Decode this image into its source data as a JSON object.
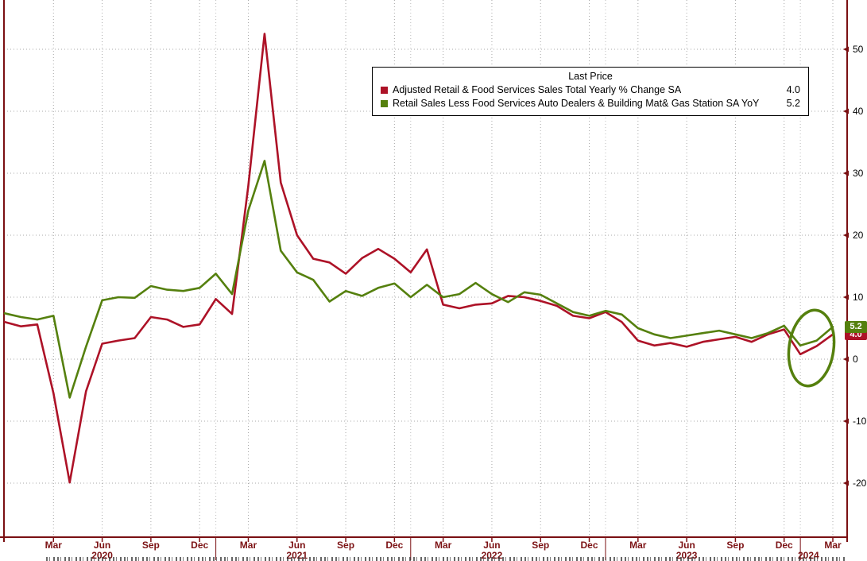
{
  "chart_data": {
    "type": "line",
    "legend": {
      "title": "Last Price",
      "position": "top-center"
    },
    "x": [
      "Dec 2019",
      "Jan 2020",
      "Feb 2020",
      "Mar 2020",
      "Apr 2020",
      "May 2020",
      "Jun 2020",
      "Jul 2020",
      "Aug 2020",
      "Sep 2020",
      "Oct 2020",
      "Nov 2020",
      "Dec 2020",
      "Jan 2021",
      "Feb 2021",
      "Mar 2021",
      "Apr 2021",
      "May 2021",
      "Jun 2021",
      "Jul 2021",
      "Aug 2021",
      "Sep 2021",
      "Oct 2021",
      "Nov 2021",
      "Dec 2021",
      "Jan 2022",
      "Feb 2022",
      "Mar 2022",
      "Apr 2022",
      "May 2022",
      "Jun 2022",
      "Jul 2022",
      "Aug 2022",
      "Sep 2022",
      "Oct 2022",
      "Nov 2022",
      "Dec 2022",
      "Jan 2023",
      "Feb 2023",
      "Mar 2023",
      "Apr 2023",
      "May 2023",
      "Jun 2023",
      "Jul 2023",
      "Aug 2023",
      "Sep 2023",
      "Oct 2023",
      "Nov 2023",
      "Dec 2023",
      "Jan 2024",
      "Feb 2024",
      "Mar 2024"
    ],
    "series": [
      {
        "id": "adjusted-retail-food-services",
        "name": "Adjusted Retail & Food Services Sales Total Yearly % Change SA",
        "color": "#ad1227",
        "last_price": "4.0",
        "values": [
          6.0,
          5.3,
          5.6,
          -5.5,
          -19.9,
          -5.2,
          2.5,
          3.0,
          3.4,
          6.8,
          6.4,
          5.2,
          5.6,
          9.7,
          7.3,
          28.0,
          52.5,
          28.5,
          20.0,
          16.2,
          15.6,
          13.8,
          16.3,
          17.8,
          16.2,
          14.0,
          17.7,
          8.8,
          8.2,
          8.8,
          9.0,
          10.2,
          10.0,
          9.4,
          8.6,
          7.0,
          6.6,
          7.6,
          6.0,
          3.0,
          2.2,
          2.6,
          2.0,
          2.8,
          3.2,
          3.6,
          2.8,
          4.0,
          4.8,
          0.8,
          2.1,
          4.0
        ]
      },
      {
        "id": "retail-control-group",
        "name": "Retail Sales Less Food Services Auto Dealers & Building Mat& Gas Station SA YoY",
        "color": "#55800e",
        "last_price": "5.2",
        "values": [
          7.4,
          6.8,
          6.4,
          7.0,
          -6.2,
          2.0,
          9.5,
          10.0,
          9.9,
          11.8,
          11.2,
          11.0,
          11.5,
          13.8,
          10.5,
          24.0,
          32.0,
          17.5,
          14.0,
          12.8,
          9.3,
          11.0,
          10.2,
          11.5,
          12.2,
          10.0,
          12.0,
          10.0,
          10.5,
          12.3,
          10.5,
          9.2,
          10.8,
          10.4,
          9.0,
          7.6,
          7.0,
          7.8,
          7.2,
          5.0,
          4.0,
          3.4,
          3.8,
          4.2,
          4.6,
          4.0,
          3.4,
          4.2,
          5.4,
          2.2,
          3.0,
          5.2
        ]
      }
    ],
    "y_axis": {
      "side": "right",
      "ticks": [
        50,
        40,
        30,
        20,
        10,
        0,
        -10,
        -20
      ]
    },
    "x_axis": {
      "ticks": [
        {
          "i": 3,
          "label": "Mar"
        },
        {
          "i": 6,
          "label": "Jun"
        },
        {
          "i": 9,
          "label": "Sep"
        },
        {
          "i": 12,
          "label": "Dec"
        },
        {
          "i": 15,
          "label": "Mar"
        },
        {
          "i": 18,
          "label": "Jun"
        },
        {
          "i": 21,
          "label": "Sep"
        },
        {
          "i": 24,
          "label": "Dec"
        },
        {
          "i": 27,
          "label": "Mar"
        },
        {
          "i": 30,
          "label": "Jun"
        },
        {
          "i": 33,
          "label": "Sep"
        },
        {
          "i": 36,
          "label": "Dec"
        },
        {
          "i": 39,
          "label": "Mar"
        },
        {
          "i": 42,
          "label": "Jun"
        },
        {
          "i": 45,
          "label": "Sep"
        },
        {
          "i": 48,
          "label": "Dec"
        },
        {
          "i": 51,
          "label": "Mar"
        }
      ],
      "years": [
        {
          "i": 6,
          "label": "2020"
        },
        {
          "i": 18,
          "label": "2021"
        },
        {
          "i": 30,
          "label": "2022"
        },
        {
          "i": 42,
          "label": "2023"
        },
        {
          "i": 49.5,
          "label": "2024"
        }
      ],
      "year_separators": [
        13,
        25,
        37,
        49
      ]
    },
    "grid": "dotted",
    "annotation": {
      "type": "ellipse-highlight",
      "note": "circles the latest data points",
      "color": "#55800e"
    }
  },
  "colors": {
    "frame": "#7a0f12",
    "axis_labels": "#7c1214",
    "grid": "#a8a8a8",
    "y_tick_labels": "#000000",
    "background": "#ffffff"
  }
}
